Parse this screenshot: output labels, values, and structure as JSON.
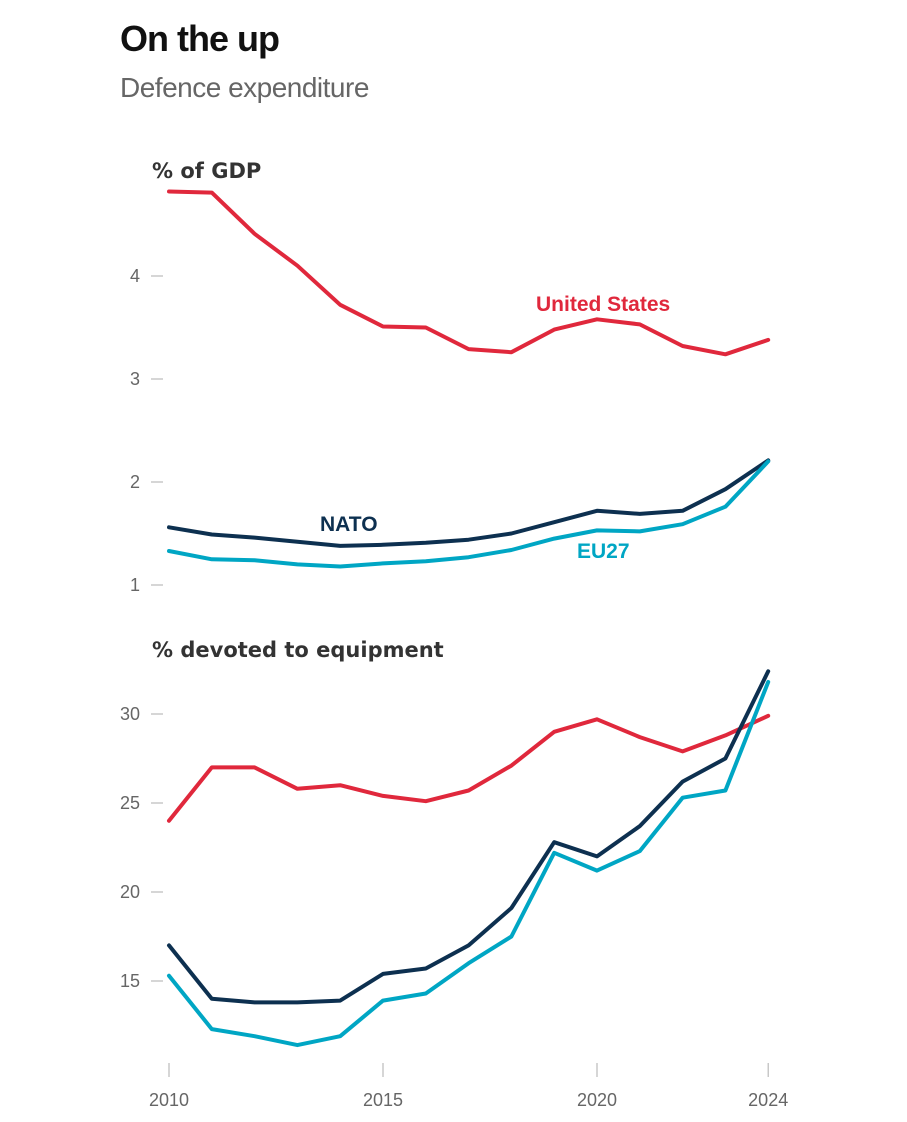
{
  "title": "On the up",
  "subtitle": "Defence expenditure",
  "colors": {
    "United States": "#e0283c",
    "NATO": "#0d3050",
    "EU27": "#00a6c4"
  },
  "chart_data": [
    {
      "type": "line",
      "title": "% of GDP",
      "x": [
        2010,
        2011,
        2012,
        2013,
        2014,
        2015,
        2016,
        2017,
        2018,
        2019,
        2020,
        2021,
        2022,
        2023,
        2024
      ],
      "ylim": [
        1,
        4.8
      ],
      "yticks": [
        1,
        2,
        3,
        4
      ],
      "grid": false,
      "series": [
        {
          "name": "United States",
          "values": [
            4.82,
            4.81,
            4.41,
            4.1,
            3.72,
            3.51,
            3.5,
            3.29,
            3.26,
            3.48,
            3.58,
            3.53,
            3.32,
            3.24,
            3.38
          ]
        },
        {
          "name": "NATO",
          "values": [
            1.56,
            1.49,
            1.46,
            1.42,
            1.38,
            1.39,
            1.41,
            1.44,
            1.5,
            1.61,
            1.72,
            1.69,
            1.72,
            1.93,
            2.21
          ]
        },
        {
          "name": "EU27",
          "values": [
            1.33,
            1.25,
            1.24,
            1.2,
            1.18,
            1.21,
            1.23,
            1.27,
            1.34,
            1.45,
            1.53,
            1.52,
            1.59,
            1.76,
            2.2
          ]
        }
      ]
    },
    {
      "type": "line",
      "title": "% devoted to equipment",
      "x": [
        2010,
        2011,
        2012,
        2013,
        2014,
        2015,
        2016,
        2017,
        2018,
        2019,
        2020,
        2021,
        2022,
        2023,
        2024
      ],
      "ylim": [
        10.5,
        33
      ],
      "yticks": [
        15,
        20,
        25,
        30
      ],
      "xticks": [
        "2010",
        "2015",
        "2020",
        "2024"
      ],
      "grid": false,
      "series": [
        {
          "name": "United States",
          "values": [
            24.0,
            27.0,
            27.0,
            25.8,
            26.0,
            25.4,
            25.1,
            25.7,
            27.1,
            29.0,
            29.7,
            28.7,
            27.9,
            28.8,
            29.9
          ]
        },
        {
          "name": "NATO",
          "values": [
            17.0,
            14.0,
            13.8,
            13.8,
            13.9,
            15.4,
            15.7,
            17.0,
            19.1,
            22.8,
            22.0,
            23.7,
            26.2,
            27.5,
            32.4
          ]
        },
        {
          "name": "EU27",
          "values": [
            15.3,
            12.3,
            11.9,
            11.4,
            11.9,
            13.9,
            14.3,
            16.0,
            17.5,
            22.2,
            21.2,
            22.3,
            25.3,
            25.7,
            31.8
          ]
        }
      ]
    }
  ]
}
